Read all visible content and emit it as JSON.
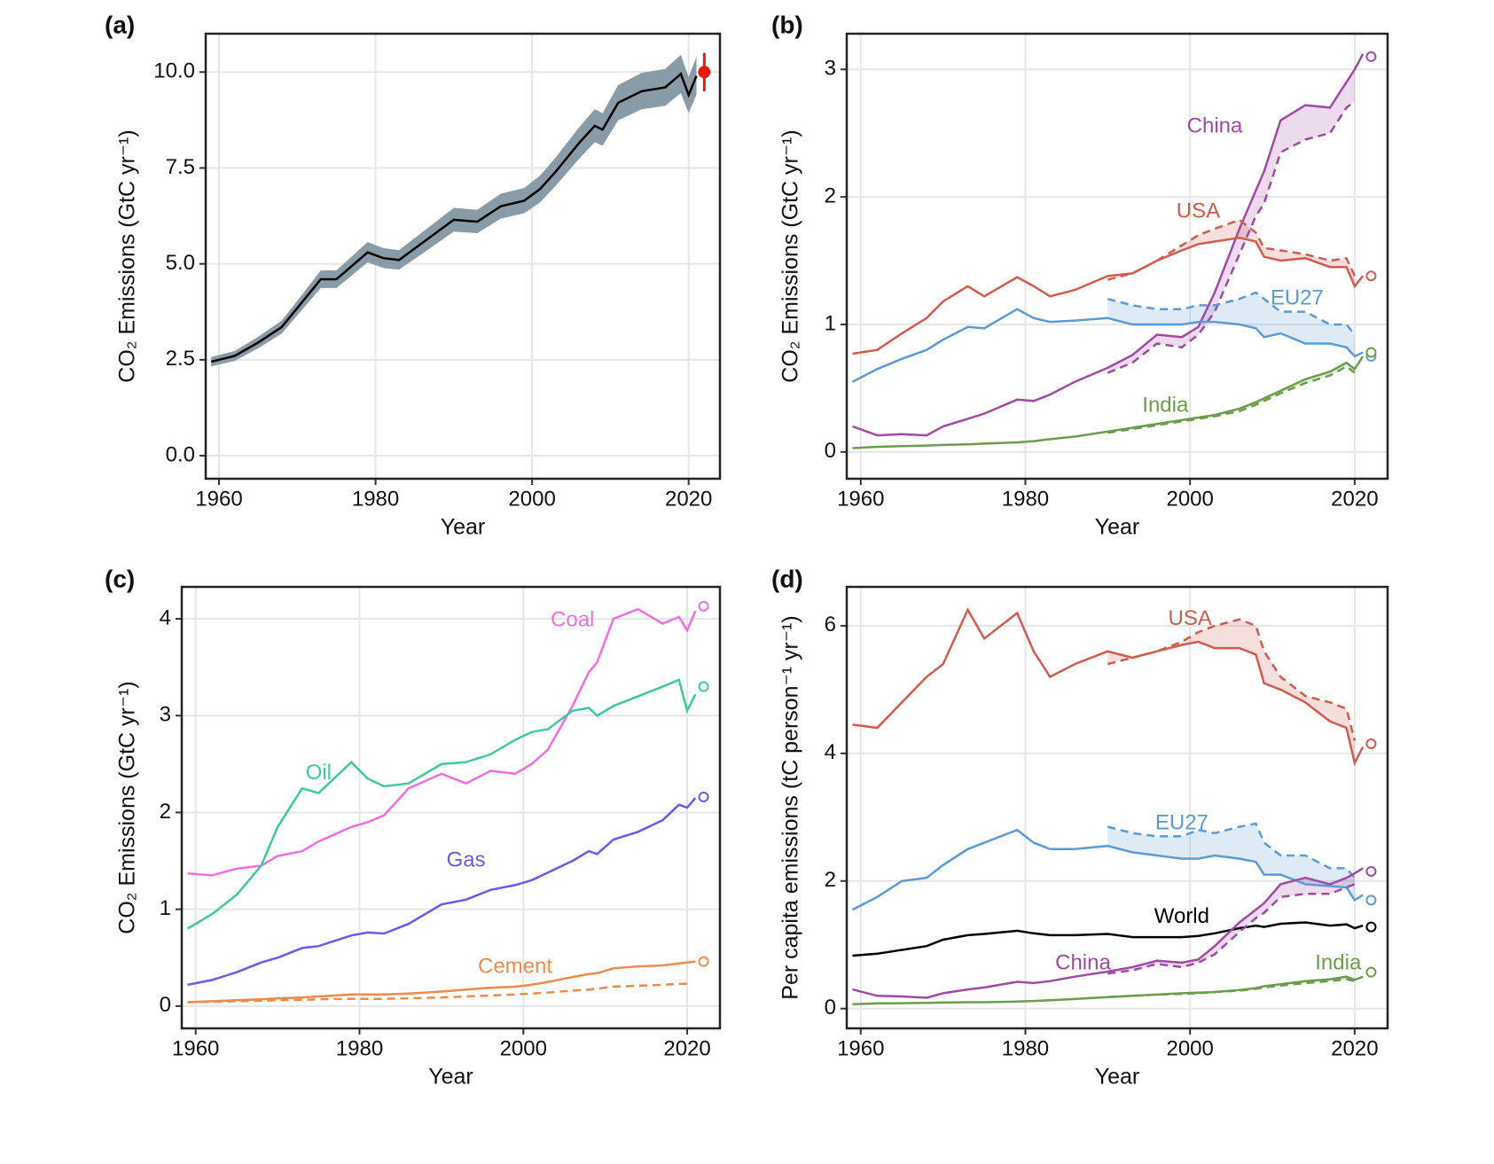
{
  "chart_data": [
    {
      "type": "line",
      "panel_label": "(a)",
      "xlabel": "Year",
      "ylabel": "CO₂ Emissions (GtC yr⁻¹)",
      "x": [
        1959,
        1962,
        1965,
        1968,
        1970,
        1973,
        1975,
        1979,
        1981,
        1983,
        1986,
        1990,
        1993,
        1996,
        1999,
        2001,
        2003,
        2006,
        2008,
        2009,
        2011,
        2014,
        2017,
        2019,
        2020,
        2021
      ],
      "xlim": [
        1958.3,
        2024
      ],
      "ylim": [
        -0.6,
        11
      ],
      "xticks": [
        1960,
        1980,
        2000,
        2020
      ],
      "yticks": [
        {
          "value": 0,
          "label": "0.0"
        },
        2.5,
        {
          "value": 5,
          "label": "5.0"
        },
        7.5,
        {
          "value": 10,
          "label": "10.0"
        }
      ],
      "grid": true,
      "projection_x": 2022,
      "series": [
        {
          "color": "#000000",
          "band_color": "#8a9ba8",
          "values": [
            2.45,
            2.6,
            2.95,
            3.35,
            3.85,
            4.6,
            4.6,
            5.3,
            5.15,
            5.1,
            5.55,
            6.15,
            6.1,
            6.5,
            6.65,
            6.95,
            7.4,
            8.15,
            8.6,
            8.5,
            9.2,
            9.5,
            9.6,
            9.95,
            9.4,
            9.9
          ],
          "lower": [
            2.33,
            2.47,
            2.8,
            3.18,
            3.66,
            4.37,
            4.37,
            5.04,
            4.89,
            4.85,
            5.27,
            5.84,
            5.8,
            6.18,
            6.32,
            6.6,
            7.03,
            7.74,
            8.17,
            8.08,
            8.74,
            9.03,
            9.12,
            9.45,
            8.93,
            9.41
          ],
          "upper": [
            2.57,
            2.73,
            3.1,
            3.52,
            4.04,
            4.83,
            4.83,
            5.57,
            5.41,
            5.36,
            5.83,
            6.46,
            6.41,
            6.83,
            6.98,
            7.3,
            7.77,
            8.56,
            9.03,
            8.93,
            9.66,
            9.98,
            10.08,
            10.45,
            9.87,
            10.4
          ],
          "projection": 10.0,
          "projection_range": [
            9.5,
            10.5
          ],
          "projection_color": "#e8170f",
          "projection_filled": true
        }
      ]
    },
    {
      "type": "line",
      "panel_label": "(b)",
      "xlabel": "Year",
      "ylabel": "CO₂ Emissions (GtC yr⁻¹)",
      "x": [
        1959,
        1962,
        1965,
        1968,
        1970,
        1973,
        1975,
        1979,
        1981,
        1983,
        1986,
        1990,
        1993,
        1996,
        1999,
        2001,
        2003,
        2006,
        2008,
        2009,
        2011,
        2014,
        2017,
        2019,
        2020,
        2021
      ],
      "xlim": [
        1958.3,
        2024
      ],
      "ylim": [
        -0.21,
        3.28
      ],
      "xticks": [
        1960,
        1980,
        2000,
        2020
      ],
      "yticks": [
        0,
        1,
        2,
        3
      ],
      "grid": true,
      "shade": true,
      "projection_x": 2022,
      "series": [
        {
          "name": "China",
          "color": "#a04aa3",
          "values": [
            0.2,
            0.13,
            0.14,
            0.13,
            0.2,
            0.26,
            0.3,
            0.41,
            0.4,
            0.45,
            0.55,
            0.66,
            0.76,
            0.92,
            0.9,
            0.98,
            1.25,
            1.75,
            2.05,
            2.2,
            2.6,
            2.72,
            2.7,
            2.9,
            3.0,
            3.12
          ],
          "dashed": [
            null,
            null,
            null,
            null,
            null,
            null,
            null,
            null,
            null,
            null,
            null,
            0.62,
            0.7,
            0.85,
            0.82,
            0.92,
            1.1,
            1.55,
            1.85,
            1.95,
            2.35,
            2.45,
            2.5,
            2.7,
            2.75,
            null
          ],
          "projection": 3.1
        },
        {
          "name": "USA",
          "color": "#cf5c4c",
          "values": [
            0.77,
            0.8,
            0.93,
            1.05,
            1.18,
            1.3,
            1.22,
            1.37,
            1.3,
            1.22,
            1.27,
            1.38,
            1.4,
            1.5,
            1.58,
            1.63,
            1.65,
            1.68,
            1.65,
            1.53,
            1.5,
            1.52,
            1.45,
            1.45,
            1.3,
            1.38
          ],
          "dashed": [
            null,
            null,
            null,
            null,
            null,
            null,
            null,
            null,
            null,
            null,
            null,
            1.35,
            1.4,
            1.5,
            1.62,
            1.7,
            1.75,
            1.82,
            1.72,
            1.6,
            1.58,
            1.55,
            1.5,
            1.52,
            1.38,
            null
          ],
          "projection": 1.38
        },
        {
          "name": "EU27",
          "color": "#5b9bd5",
          "values": [
            0.55,
            0.65,
            0.73,
            0.8,
            0.88,
            0.98,
            0.97,
            1.12,
            1.05,
            1.02,
            1.03,
            1.05,
            1.0,
            1.0,
            1.0,
            1.02,
            1.02,
            1.0,
            0.97,
            0.9,
            0.93,
            0.85,
            0.85,
            0.82,
            0.75,
            0.78
          ],
          "dashed": [
            null,
            null,
            null,
            null,
            null,
            null,
            null,
            null,
            null,
            null,
            null,
            1.2,
            1.15,
            1.12,
            1.12,
            1.15,
            1.15,
            1.2,
            1.25,
            1.2,
            1.1,
            1.1,
            1.0,
            1.0,
            0.92,
            null
          ],
          "projection": 0.75
        },
        {
          "name": "India",
          "color": "#6b9e4b",
          "values": [
            0.03,
            0.04,
            0.045,
            0.05,
            0.055,
            0.06,
            0.065,
            0.075,
            0.085,
            0.1,
            0.12,
            0.16,
            0.19,
            0.22,
            0.25,
            0.27,
            0.29,
            0.34,
            0.39,
            0.42,
            0.48,
            0.57,
            0.63,
            0.7,
            0.65,
            0.75
          ],
          "dashed": [
            null,
            null,
            null,
            null,
            null,
            null,
            null,
            null,
            null,
            null,
            null,
            0.15,
            0.18,
            0.21,
            0.24,
            0.26,
            0.28,
            0.32,
            0.37,
            0.4,
            0.46,
            0.54,
            0.6,
            0.67,
            0.62,
            null
          ],
          "projection": 0.78
        }
      ]
    },
    {
      "type": "line",
      "panel_label": "(c)",
      "xlabel": "Year",
      "ylabel": "CO₂ Emissions (GtC yr⁻¹)",
      "x": [
        1959,
        1962,
        1965,
        1968,
        1970,
        1973,
        1975,
        1979,
        1981,
        1983,
        1986,
        1990,
        1993,
        1996,
        1999,
        2001,
        2003,
        2006,
        2008,
        2009,
        2011,
        2014,
        2017,
        2019,
        2020,
        2021
      ],
      "xlim": [
        1958.3,
        2024
      ],
      "ylim": [
        -0.23,
        4.33
      ],
      "xticks": [
        1960,
        1980,
        2000,
        2020
      ],
      "yticks": [
        0,
        1,
        2,
        3,
        4
      ],
      "grid": true,
      "shade": false,
      "projection_x": 2022,
      "series": [
        {
          "name": "Coal",
          "color": "#f26ee3",
          "values": [
            1.37,
            1.35,
            1.42,
            1.45,
            1.55,
            1.6,
            1.7,
            1.85,
            1.9,
            1.97,
            2.25,
            2.4,
            2.3,
            2.43,
            2.4,
            2.5,
            2.65,
            3.1,
            3.45,
            3.55,
            4.0,
            4.1,
            3.95,
            4.02,
            3.88,
            4.08
          ],
          "projection": 4.13
        },
        {
          "name": "Oil",
          "color": "#3ec9a0",
          "values": [
            0.8,
            0.95,
            1.15,
            1.45,
            1.85,
            2.25,
            2.2,
            2.52,
            2.35,
            2.27,
            2.3,
            2.5,
            2.52,
            2.6,
            2.75,
            2.83,
            2.86,
            3.05,
            3.08,
            3.0,
            3.1,
            3.2,
            3.3,
            3.37,
            3.05,
            3.22
          ],
          "projection": 3.3
        },
        {
          "name": "Gas",
          "color": "#6a5af0",
          "values": [
            0.22,
            0.27,
            0.35,
            0.45,
            0.5,
            0.6,
            0.62,
            0.73,
            0.76,
            0.75,
            0.85,
            1.05,
            1.1,
            1.2,
            1.25,
            1.3,
            1.38,
            1.5,
            1.6,
            1.57,
            1.72,
            1.8,
            1.92,
            2.08,
            2.05,
            2.15
          ],
          "projection": 2.16
        },
        {
          "name": "Cement",
          "color": "#f08a4b",
          "values": [
            0.04,
            0.05,
            0.06,
            0.07,
            0.08,
            0.09,
            0.1,
            0.12,
            0.12,
            0.12,
            0.13,
            0.15,
            0.17,
            0.19,
            0.2,
            0.22,
            0.25,
            0.3,
            0.33,
            0.34,
            0.39,
            0.41,
            0.42,
            0.44,
            0.45,
            0.46
          ],
          "dashed": [
            0.04,
            0.045,
            0.05,
            0.055,
            0.06,
            0.065,
            0.07,
            0.075,
            0.075,
            0.075,
            0.08,
            0.09,
            0.1,
            0.11,
            0.12,
            0.13,
            0.14,
            0.16,
            0.17,
            0.18,
            0.2,
            0.21,
            0.22,
            0.23,
            0.23,
            null
          ],
          "projection": 0.46
        }
      ]
    },
    {
      "type": "line",
      "panel_label": "(d)",
      "xlabel": "Year",
      "ylabel": "Per capita emissions (tC person⁻¹ yr⁻¹)",
      "x": [
        1959,
        1962,
        1965,
        1968,
        1970,
        1973,
        1975,
        1979,
        1981,
        1983,
        1986,
        1990,
        1993,
        1996,
        1999,
        2001,
        2003,
        2006,
        2008,
        2009,
        2011,
        2014,
        2017,
        2019,
        2020,
        2021
      ],
      "xlim": [
        1958.3,
        2024
      ],
      "ylim": [
        -0.31,
        6.61
      ],
      "xticks": [
        1960,
        1980,
        2000,
        2020
      ],
      "yticks": [
        0,
        2,
        4,
        6
      ],
      "grid": true,
      "shade": true,
      "projection_x": 2022,
      "series": [
        {
          "name": "USA",
          "color": "#cf5c4c",
          "values": [
            4.45,
            4.4,
            4.8,
            5.2,
            5.4,
            6.25,
            5.8,
            6.2,
            5.6,
            5.2,
            5.4,
            5.6,
            5.5,
            5.6,
            5.7,
            5.75,
            5.65,
            5.65,
            5.55,
            5.1,
            5.0,
            4.8,
            4.5,
            4.4,
            3.85,
            4.1
          ],
          "dashed": [
            null,
            null,
            null,
            null,
            null,
            null,
            null,
            null,
            null,
            null,
            null,
            5.4,
            5.5,
            5.6,
            5.75,
            5.9,
            6.0,
            6.1,
            6.0,
            5.6,
            5.2,
            4.9,
            4.8,
            4.7,
            4.2,
            null
          ],
          "projection": 4.15
        },
        {
          "name": "EU27",
          "color": "#5b9bd5",
          "values": [
            1.55,
            1.75,
            2.0,
            2.05,
            2.25,
            2.5,
            2.6,
            2.8,
            2.6,
            2.5,
            2.5,
            2.55,
            2.45,
            2.4,
            2.35,
            2.35,
            2.4,
            2.35,
            2.3,
            2.1,
            2.1,
            1.95,
            1.92,
            1.9,
            1.7,
            1.78
          ],
          "dashed": [
            null,
            null,
            null,
            null,
            null,
            null,
            null,
            null,
            null,
            null,
            null,
            2.85,
            2.75,
            2.7,
            2.7,
            2.8,
            2.75,
            2.85,
            2.9,
            2.6,
            2.4,
            2.4,
            2.2,
            2.2,
            2.05,
            null
          ],
          "projection": 1.7
        },
        {
          "name": "World",
          "color": "#000000",
          "values": [
            0.83,
            0.86,
            0.92,
            0.98,
            1.08,
            1.15,
            1.17,
            1.22,
            1.18,
            1.15,
            1.15,
            1.17,
            1.12,
            1.12,
            1.12,
            1.14,
            1.18,
            1.26,
            1.3,
            1.28,
            1.33,
            1.35,
            1.3,
            1.32,
            1.26,
            1.3
          ],
          "projection": 1.28
        },
        {
          "name": "China",
          "color": "#a04aa3",
          "values": [
            0.3,
            0.2,
            0.19,
            0.17,
            0.24,
            0.3,
            0.33,
            0.42,
            0.4,
            0.43,
            0.5,
            0.58,
            0.65,
            0.75,
            0.72,
            0.77,
            0.98,
            1.35,
            1.55,
            1.65,
            1.95,
            2.05,
            1.95,
            2.05,
            2.12,
            2.2
          ],
          "dashed": [
            null,
            null,
            null,
            null,
            null,
            null,
            null,
            null,
            null,
            null,
            null,
            0.55,
            0.6,
            0.7,
            0.65,
            0.72,
            0.85,
            1.2,
            1.42,
            1.5,
            1.75,
            1.8,
            1.8,
            1.9,
            1.95,
            null
          ],
          "projection": 2.15
        },
        {
          "name": "India",
          "color": "#6b9e4b",
          "values": [
            0.07,
            0.08,
            0.085,
            0.09,
            0.095,
            0.1,
            0.1,
            0.11,
            0.12,
            0.13,
            0.15,
            0.18,
            0.2,
            0.22,
            0.24,
            0.25,
            0.26,
            0.29,
            0.32,
            0.35,
            0.38,
            0.43,
            0.46,
            0.5,
            0.45,
            0.5
          ],
          "dashed": [
            null,
            null,
            null,
            null,
            null,
            null,
            null,
            null,
            null,
            null,
            null,
            0.18,
            0.2,
            0.22,
            0.23,
            0.24,
            0.26,
            0.28,
            0.31,
            0.33,
            0.36,
            0.4,
            0.43,
            0.46,
            0.43,
            null
          ],
          "projection": 0.57
        }
      ]
    }
  ]
}
